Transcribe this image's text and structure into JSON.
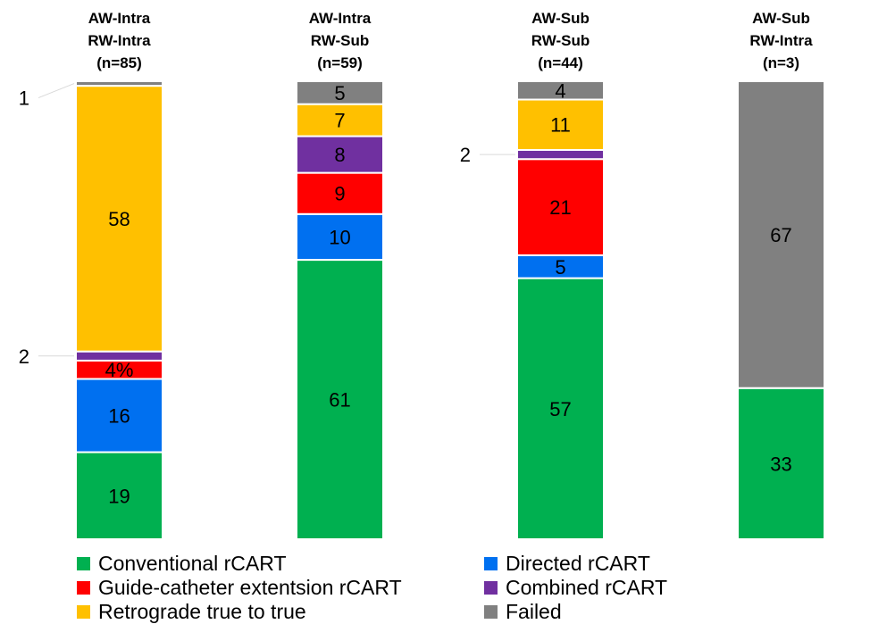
{
  "chart_data": {
    "type": "bar",
    "stacked": true,
    "normalized_percent": true,
    "categories": [
      {
        "lines": [
          "AW-Intra",
          "RW-Intra",
          "(n=85)"
        ]
      },
      {
        "lines": [
          "AW-Intra",
          "RW-Sub",
          "(n=59)"
        ]
      },
      {
        "lines": [
          "AW-Sub",
          "RW-Sub",
          "(n=44)"
        ]
      },
      {
        "lines": [
          "AW-Sub",
          "RW-Intra",
          "(n=3)"
        ]
      }
    ],
    "series": [
      {
        "name": "Conventional rCART",
        "color": "#00b050",
        "values": [
          19,
          61,
          57,
          33
        ],
        "labels": [
          "19",
          "61",
          "57",
          "33"
        ]
      },
      {
        "name": "Directed rCART",
        "color": "#0070f0",
        "values": [
          16,
          10,
          5,
          0
        ],
        "labels": [
          "16",
          "10",
          "5",
          ""
        ]
      },
      {
        "name": "Guide-catheter extentsion rCART",
        "color": "#ff0000",
        "values": [
          4,
          9,
          21,
          0
        ],
        "labels": [
          "4%",
          "9",
          "21",
          ""
        ]
      },
      {
        "name": "Combined rCART",
        "color": "#7030a0",
        "values": [
          2,
          8,
          2,
          0
        ],
        "labels": [
          "",
          "8",
          "",
          ""
        ]
      },
      {
        "name": "Retrograde true to true",
        "color": "#ffc000",
        "values": [
          58,
          7,
          11,
          0
        ],
        "labels": [
          "58",
          "7",
          "11",
          ""
        ]
      },
      {
        "name": "Failed",
        "color": "#808080",
        "values": [
          1,
          5,
          4,
          67
        ],
        "labels": [
          "",
          "5",
          "4",
          "67"
        ]
      }
    ],
    "callouts": [
      {
        "category": 0,
        "series": 5,
        "text": "1"
      },
      {
        "category": 0,
        "series": 3,
        "text": "2"
      },
      {
        "category": 2,
        "series": 3,
        "text": "2"
      }
    ],
    "ylim": [
      0,
      100
    ],
    "grid": false,
    "legend_position": "bottom"
  }
}
